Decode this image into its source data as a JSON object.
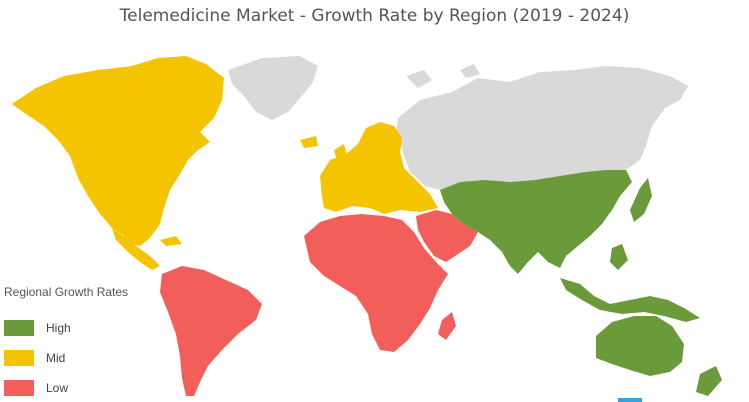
{
  "title": "Telemedicine Market  - Growth Rate by Region (2019 - 2024)",
  "colors": {
    "high": "#6a9a3a",
    "mid": "#f5c400",
    "low": "#f25e5a",
    "no_data": "#d9d9d9"
  },
  "legend": {
    "title": "Regional Growth Rates",
    "items": [
      {
        "label": "High",
        "color": "#6a9a3a"
      },
      {
        "label": "Mid",
        "color": "#f5c400"
      },
      {
        "label": "Low",
        "color": "#f25e5a"
      }
    ]
  },
  "regions": [
    {
      "name": "North America",
      "rate": "Mid"
    },
    {
      "name": "Europe",
      "rate": "Mid"
    },
    {
      "name": "Asia Pacific",
      "rate": "High"
    },
    {
      "name": "South America",
      "rate": "Low"
    },
    {
      "name": "Middle East and Africa",
      "rate": "Low"
    }
  ]
}
